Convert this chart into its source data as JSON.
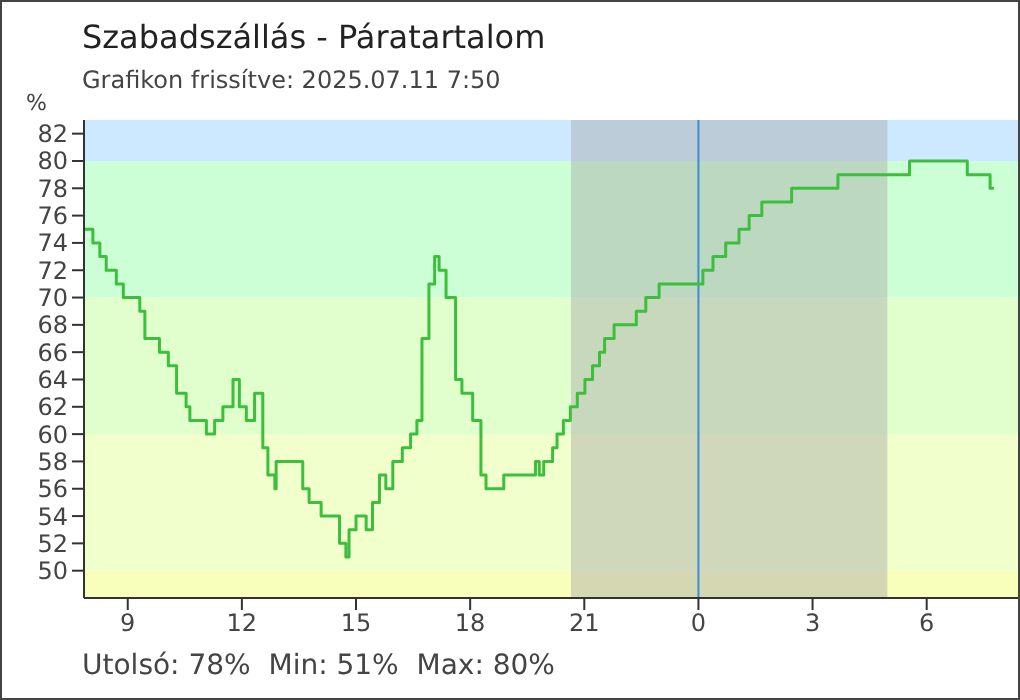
{
  "chart_data": {
    "type": "step",
    "title": "Szabadszállás - Páratartalom",
    "subtitle": "Grafikon frissítve: 2025.07.11 7:50",
    "ylabel": "%",
    "x": [
      "2025-07-10T07:51",
      "2025-07-10T08:05",
      "2025-07-10T08:16",
      "2025-07-10T08:26",
      "2025-07-10T08:42",
      "2025-07-10T08:53",
      "2025-07-10T09:19",
      "2025-07-10T09:27",
      "2025-07-10T09:50",
      "2025-07-10T10:04",
      "2025-07-10T10:17",
      "2025-07-10T10:32",
      "2025-07-10T10:38",
      "2025-07-10T10:48",
      "2025-07-10T11:04",
      "2025-07-10T11:17",
      "2025-07-10T11:30",
      "2025-07-10T11:46",
      "2025-07-10T11:56",
      "2025-07-10T12:07",
      "2025-07-10T12:20",
      "2025-07-10T12:33",
      "2025-07-10T12:41",
      "2025-07-10T12:52",
      "2025-07-10T12:54",
      "2025-07-10T13:20",
      "2025-07-10T13:36",
      "2025-07-10T13:46",
      "2025-07-10T14:05",
      "2025-07-10T14:28",
      "2025-07-10T14:34",
      "2025-07-10T14:44",
      "2025-07-10T14:49",
      "2025-07-10T15:00",
      "2025-07-10T15:16",
      "2025-07-10T15:26",
      "2025-07-10T15:37",
      "2025-07-10T15:47",
      "2025-07-10T15:58",
      "2025-07-10T16:13",
      "2025-07-10T16:26",
      "2025-07-10T16:36",
      "2025-07-10T16:44",
      "2025-07-10T16:55",
      "2025-07-10T17:04",
      "2025-07-10T17:11",
      "2025-07-10T17:22",
      "2025-07-10T17:37",
      "2025-07-10T17:47",
      "2025-07-10T18:04",
      "2025-07-10T18:17",
      "2025-07-10T18:25",
      "2025-07-10T18:46",
      "2025-07-10T18:53",
      "2025-07-10T19:43",
      "2025-07-10T19:49",
      "2025-07-10T19:56",
      "2025-07-10T20:10",
      "2025-07-10T20:17",
      "2025-07-10T20:27",
      "2025-07-10T20:38",
      "2025-07-10T20:49",
      "2025-07-10T21:01",
      "2025-07-10T21:13",
      "2025-07-10T21:24",
      "2025-07-10T21:32",
      "2025-07-10T21:47",
      "2025-07-10T22:22",
      "2025-07-10T22:37",
      "2025-07-10T22:58",
      "2025-07-11T00:07",
      "2025-07-11T00:23",
      "2025-07-11T00:43",
      "2025-07-11T01:04",
      "2025-07-11T01:20",
      "2025-07-11T01:40",
      "2025-07-11T02:27",
      "2025-07-11T03:40",
      "2025-07-11T05:33",
      "2025-07-11T07:04",
      "2025-07-11T07:40",
      "2025-07-11T07:46"
    ],
    "series": [
      {
        "color": "#3dbf3d",
        "values": [
          75,
          74,
          73,
          72,
          71,
          70,
          69,
          67,
          66,
          65,
          63,
          62,
          61,
          61,
          60,
          61,
          62,
          64,
          62,
          61,
          63,
          59,
          57,
          56,
          58,
          58,
          56,
          55,
          54,
          54,
          52,
          51,
          53,
          54,
          53,
          55,
          57,
          56,
          58,
          59,
          60,
          61,
          67,
          71,
          73,
          72,
          70,
          64,
          63,
          61,
          57,
          56,
          56,
          57,
          58,
          57,
          58,
          59,
          60,
          61,
          62,
          63,
          64,
          65,
          66,
          67,
          68,
          69,
          70,
          71,
          72,
          73,
          74,
          75,
          76,
          77,
          78,
          79,
          80,
          79,
          78,
          78
        ]
      }
    ],
    "xlim": [
      "2025-07-10T07:51",
      "2025-07-11T08:24"
    ],
    "xticks": [
      {
        "value": "2025-07-10T09:00",
        "label": "9"
      },
      {
        "value": "2025-07-10T12:00",
        "label": "12"
      },
      {
        "value": "2025-07-10T15:00",
        "label": "15"
      },
      {
        "value": "2025-07-10T18:00",
        "label": "18"
      },
      {
        "value": "2025-07-10T21:00",
        "label": "21"
      },
      {
        "value": "2025-07-11T00:00",
        "label": "0"
      },
      {
        "value": "2025-07-11T03:00",
        "label": "3"
      },
      {
        "value": "2025-07-11T06:00",
        "label": "6"
      }
    ],
    "ylim": [
      48,
      83
    ],
    "yticks": [
      50,
      52,
      54,
      56,
      58,
      60,
      62,
      64,
      66,
      68,
      70,
      72,
      74,
      76,
      78,
      80,
      82
    ],
    "bands": [
      {
        "axis": "y",
        "from": 80,
        "to": 83,
        "color": "#cce9ff"
      },
      {
        "axis": "y",
        "from": 70,
        "to": 80,
        "color": "#ccffd6"
      },
      {
        "axis": "y",
        "from": 60,
        "to": 70,
        "color": "#e0ffcc"
      },
      {
        "axis": "y",
        "from": 50,
        "to": 60,
        "color": "#f0ffcc"
      },
      {
        "axis": "y",
        "from": 48,
        "to": 50,
        "color": "#f8ffbb"
      },
      {
        "axis": "x",
        "from": "2025-07-10T20:39",
        "to": "2025-07-11T04:58",
        "color": "#a8a8a8"
      }
    ],
    "ref_lines": [
      {
        "axis": "x",
        "value": "2025-07-11T00:00",
        "color": "#3a8fd0"
      }
    ],
    "annotations": [
      "Utolsó: 78%  Min: 51%  Max: 80%"
    ],
    "grid": false,
    "legend": false,
    "marker": "none",
    "line_style": "solid"
  }
}
